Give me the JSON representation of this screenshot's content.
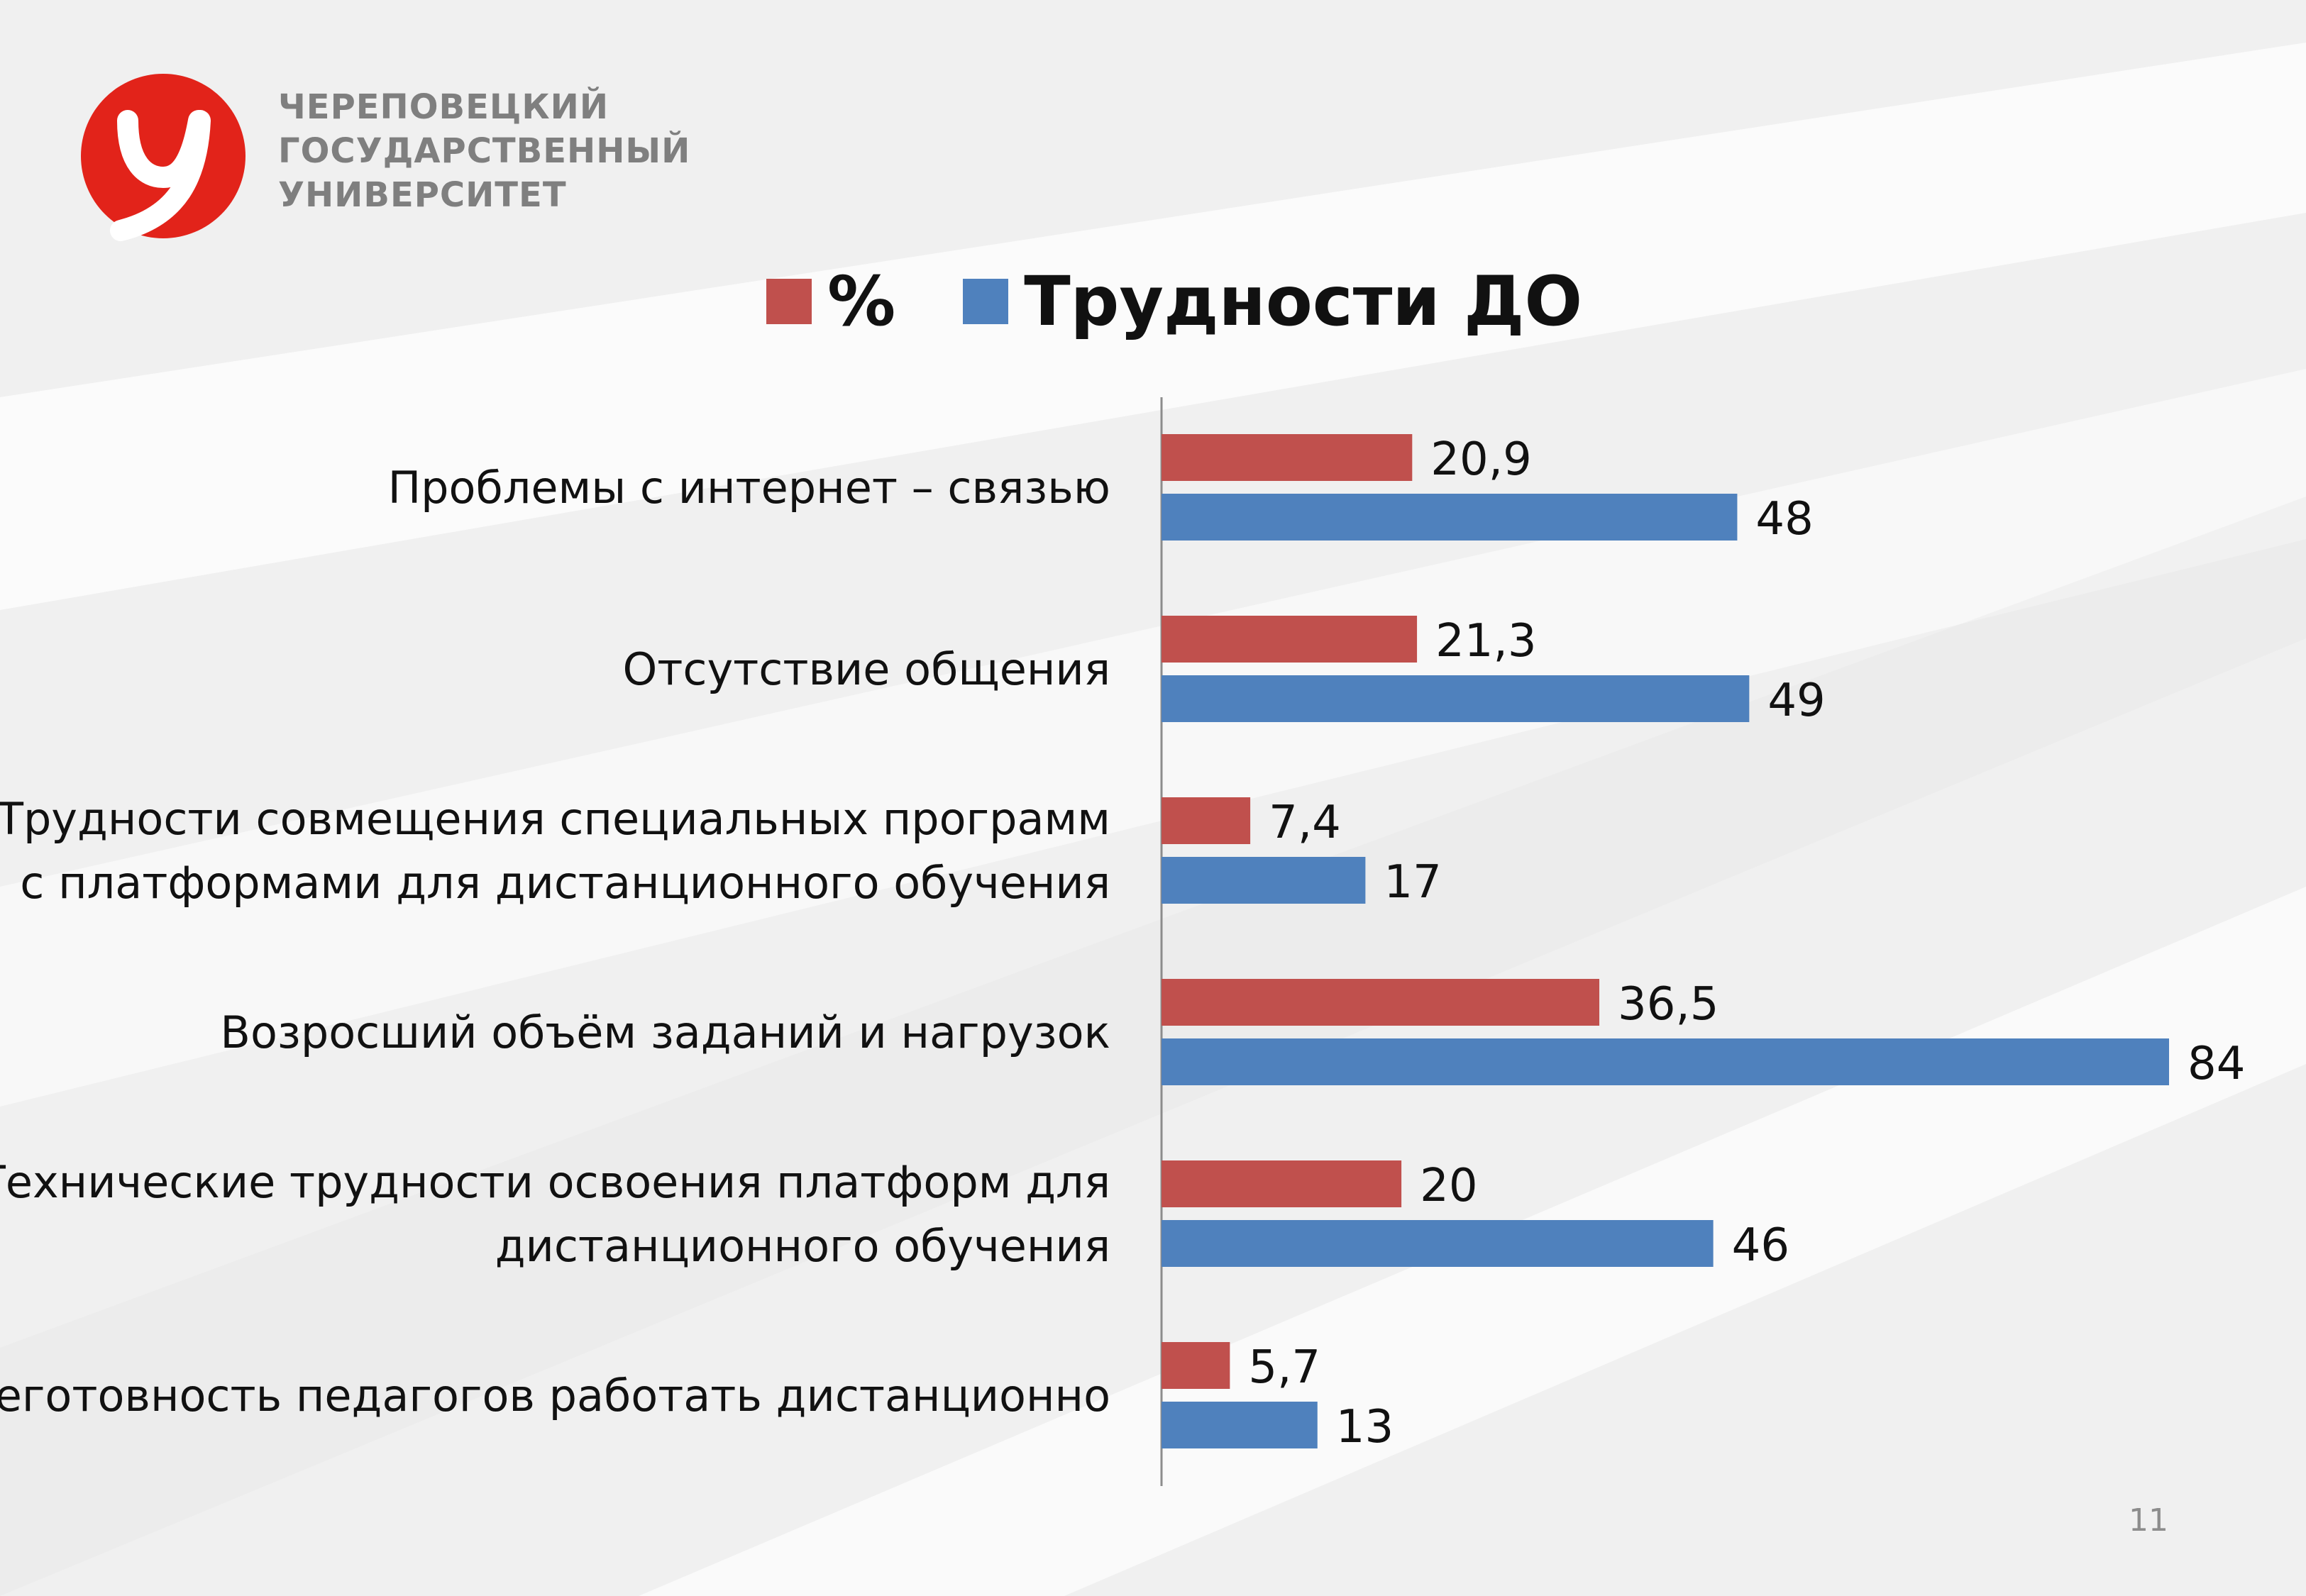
{
  "logo": {
    "lines": [
      "ЧЕРЕПОВЕЦКИЙ",
      "ГОСУДАРСТВЕННЫЙ",
      "УНИВЕРСИТЕТ"
    ]
  },
  "page_number": "11",
  "colors": {
    "series1": "#c0504d",
    "series2": "#4f81bd",
    "logo_red": "#e2231a"
  },
  "chart_data": {
    "type": "bar",
    "orientation": "horizontal",
    "legend_position": "top",
    "grid": false,
    "xlim": [
      0,
      84
    ],
    "categories": [
      [
        "Проблемы с интернет – связью"
      ],
      [
        "Отсутствие общения"
      ],
      [
        "Трудности совмещения специальных программ",
        "с платформами для дистанционного обучения"
      ],
      [
        "Возросший объём заданий и нагрузок"
      ],
      [
        "Технические трудности освоения платформ для",
        "дистанционного обучения"
      ],
      [
        "Неготовность педагогов работать дистанционно"
      ]
    ],
    "series": [
      {
        "name": "%",
        "color": "#c0504d",
        "values": [
          20.9,
          21.3,
          7.4,
          36.5,
          20,
          5.7
        ],
        "labels": [
          "20,9",
          "21,3",
          "7,4",
          "36,5",
          "20",
          "5,7"
        ]
      },
      {
        "name": "Трудности ДО",
        "color": "#4f81bd",
        "values": [
          48,
          49,
          17,
          84,
          46,
          13
        ],
        "labels": [
          "48",
          "49",
          "17",
          "84",
          "46",
          "13"
        ]
      }
    ]
  }
}
